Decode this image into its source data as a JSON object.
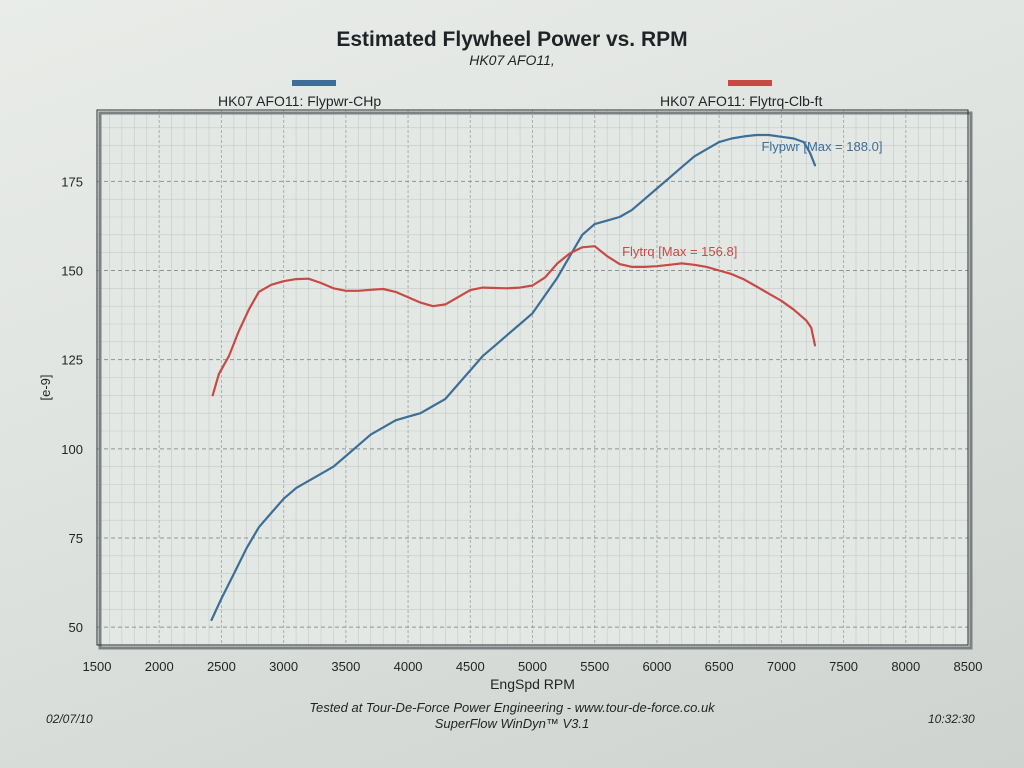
{
  "header": {
    "title": "Estimated Flywheel Power vs. RPM",
    "subtitle": "HK07 AFO11,"
  },
  "footer": {
    "line1": "Tested at Tour-De-Force Power Engineering - www.tour-de-force.co.uk",
    "line2": "SuperFlow WinDyn™ V3.1",
    "date": "02/07/10",
    "time": "10:32:30"
  },
  "chart_data": {
    "type": "line",
    "title": "Estimated Flywheel Power vs. RPM",
    "subtitle": "HK07 AFO11,",
    "xlabel": "EngSpd RPM",
    "ylabel": "[e-9]",
    "xlim": [
      1500,
      8500
    ],
    "ylim": [
      45,
      195
    ],
    "x_ticks": [
      1500,
      2000,
      2500,
      3000,
      3500,
      4000,
      4500,
      5000,
      5500,
      6000,
      6500,
      7000,
      7500,
      8000,
      8500
    ],
    "y_ticks": [
      50,
      75,
      100,
      125,
      150,
      175
    ],
    "grid": true,
    "legend_position": "top",
    "series": [
      {
        "name": "HK07 AFO11: Flypwr-CHp",
        "color": "#3d6e96",
        "annotation": "Flypwr [Max = 188.0]",
        "points": [
          [
            2420,
            52
          ],
          [
            2500,
            58
          ],
          [
            2600,
            65
          ],
          [
            2700,
            72
          ],
          [
            2800,
            78
          ],
          [
            2900,
            82
          ],
          [
            3000,
            86
          ],
          [
            3100,
            89
          ],
          [
            3200,
            91
          ],
          [
            3300,
            93
          ],
          [
            3400,
            95
          ],
          [
            3500,
            98
          ],
          [
            3600,
            101
          ],
          [
            3700,
            104
          ],
          [
            3800,
            106
          ],
          [
            3900,
            108
          ],
          [
            4000,
            109
          ],
          [
            4100,
            110
          ],
          [
            4200,
            112
          ],
          [
            4300,
            114
          ],
          [
            4400,
            118
          ],
          [
            4500,
            122
          ],
          [
            4600,
            126
          ],
          [
            4700,
            129
          ],
          [
            4800,
            132
          ],
          [
            4900,
            135
          ],
          [
            5000,
            138
          ],
          [
            5100,
            143
          ],
          [
            5200,
            148
          ],
          [
            5300,
            154
          ],
          [
            5400,
            160
          ],
          [
            5500,
            163
          ],
          [
            5600,
            164
          ],
          [
            5700,
            165
          ],
          [
            5800,
            167
          ],
          [
            5900,
            170
          ],
          [
            6000,
            173
          ],
          [
            6100,
            176
          ],
          [
            6200,
            179
          ],
          [
            6300,
            182
          ],
          [
            6400,
            184
          ],
          [
            6500,
            186
          ],
          [
            6600,
            187
          ],
          [
            6700,
            187.6
          ],
          [
            6800,
            188
          ],
          [
            6900,
            188
          ],
          [
            7000,
            187.5
          ],
          [
            7100,
            187
          ],
          [
            7180,
            186
          ],
          [
            7230,
            183
          ],
          [
            7270,
            179.5
          ]
        ]
      },
      {
        "name": "HK07 AFO11: Flytrq-Clb-ft",
        "color": "#c84a45",
        "annotation": "Flytrq [Max = 156.8]",
        "points": [
          [
            2430,
            115
          ],
          [
            2480,
            121
          ],
          [
            2560,
            126
          ],
          [
            2640,
            133
          ],
          [
            2720,
            139
          ],
          [
            2800,
            144
          ],
          [
            2900,
            146
          ],
          [
            3000,
            147
          ],
          [
            3100,
            147.6
          ],
          [
            3200,
            147.7
          ],
          [
            3300,
            146.5
          ],
          [
            3400,
            145
          ],
          [
            3500,
            144.3
          ],
          [
            3600,
            144.3
          ],
          [
            3700,
            144.6
          ],
          [
            3800,
            144.8
          ],
          [
            3900,
            144
          ],
          [
            4000,
            142.5
          ],
          [
            4100,
            141
          ],
          [
            4200,
            140
          ],
          [
            4300,
            140.5
          ],
          [
            4400,
            142.5
          ],
          [
            4500,
            144.5
          ],
          [
            4600,
            145.2
          ],
          [
            4700,
            145.1
          ],
          [
            4800,
            145
          ],
          [
            4900,
            145.2
          ],
          [
            5000,
            145.8
          ],
          [
            5100,
            148
          ],
          [
            5200,
            152
          ],
          [
            5300,
            154.8
          ],
          [
            5400,
            156.5
          ],
          [
            5500,
            156.8
          ],
          [
            5600,
            154
          ],
          [
            5700,
            151.8
          ],
          [
            5800,
            151
          ],
          [
            5900,
            151
          ],
          [
            6000,
            151.2
          ],
          [
            6100,
            151.6
          ],
          [
            6200,
            152
          ],
          [
            6300,
            151.6
          ],
          [
            6400,
            151
          ],
          [
            6500,
            150
          ],
          [
            6600,
            149
          ],
          [
            6700,
            147.5
          ],
          [
            6800,
            145.5
          ],
          [
            6900,
            143.5
          ],
          [
            7000,
            141.5
          ],
          [
            7100,
            139
          ],
          [
            7200,
            136
          ],
          [
            7240,
            134
          ],
          [
            7270,
            129
          ]
        ]
      }
    ]
  }
}
